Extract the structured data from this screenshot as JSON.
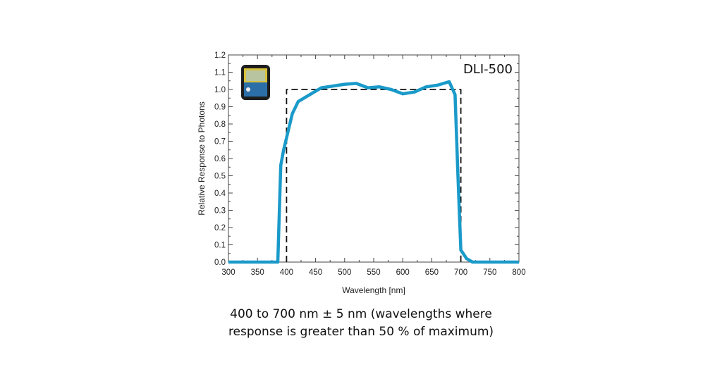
{
  "chart_data": {
    "type": "line",
    "title": "",
    "annotation": "DLI-500",
    "xlabel": "Wavelength [nm]",
    "ylabel": "Relative Response to Photons",
    "xlim": [
      300,
      800
    ],
    "ylim": [
      0,
      1.2
    ],
    "xticks": [
      300,
      350,
      400,
      450,
      500,
      550,
      600,
      650,
      700,
      750,
      800
    ],
    "yticks": [
      "0.0",
      "0.1",
      "0.2",
      "0.3",
      "0.4",
      "0.5",
      "0.6",
      "0.7",
      "0.8",
      "0.9",
      "1.0",
      "1.1",
      "1.2"
    ],
    "grid": false,
    "series": [
      {
        "style": "solid",
        "color": "#1a9ac9",
        "x": [
          300,
          385,
          390,
          395,
          400,
          410,
          420,
          440,
          460,
          480,
          500,
          520,
          540,
          560,
          580,
          600,
          620,
          640,
          660,
          680,
          690,
          695,
          700,
          710,
          720,
          800
        ],
        "y": [
          0,
          0,
          0.56,
          0.65,
          0.72,
          0.86,
          0.93,
          0.97,
          1.01,
          1.02,
          1.03,
          1.035,
          1.01,
          1.015,
          1.0,
          0.975,
          0.985,
          1.015,
          1.025,
          1.045,
          0.97,
          0.5,
          0.07,
          0.02,
          0,
          0
        ]
      },
      {
        "style": "dashed",
        "color": "#111111",
        "x": [
          400,
          400,
          700,
          700
        ],
        "y": [
          0,
          1.0,
          1.0,
          0
        ]
      }
    ]
  },
  "caption": {
    "line1": "400 to 700 nm ± 5 nm (wavelengths where",
    "line2": "response is greater than 50 % of maximum)"
  },
  "device_image": {
    "display_top": "285",
    "display_bottom": "35"
  }
}
